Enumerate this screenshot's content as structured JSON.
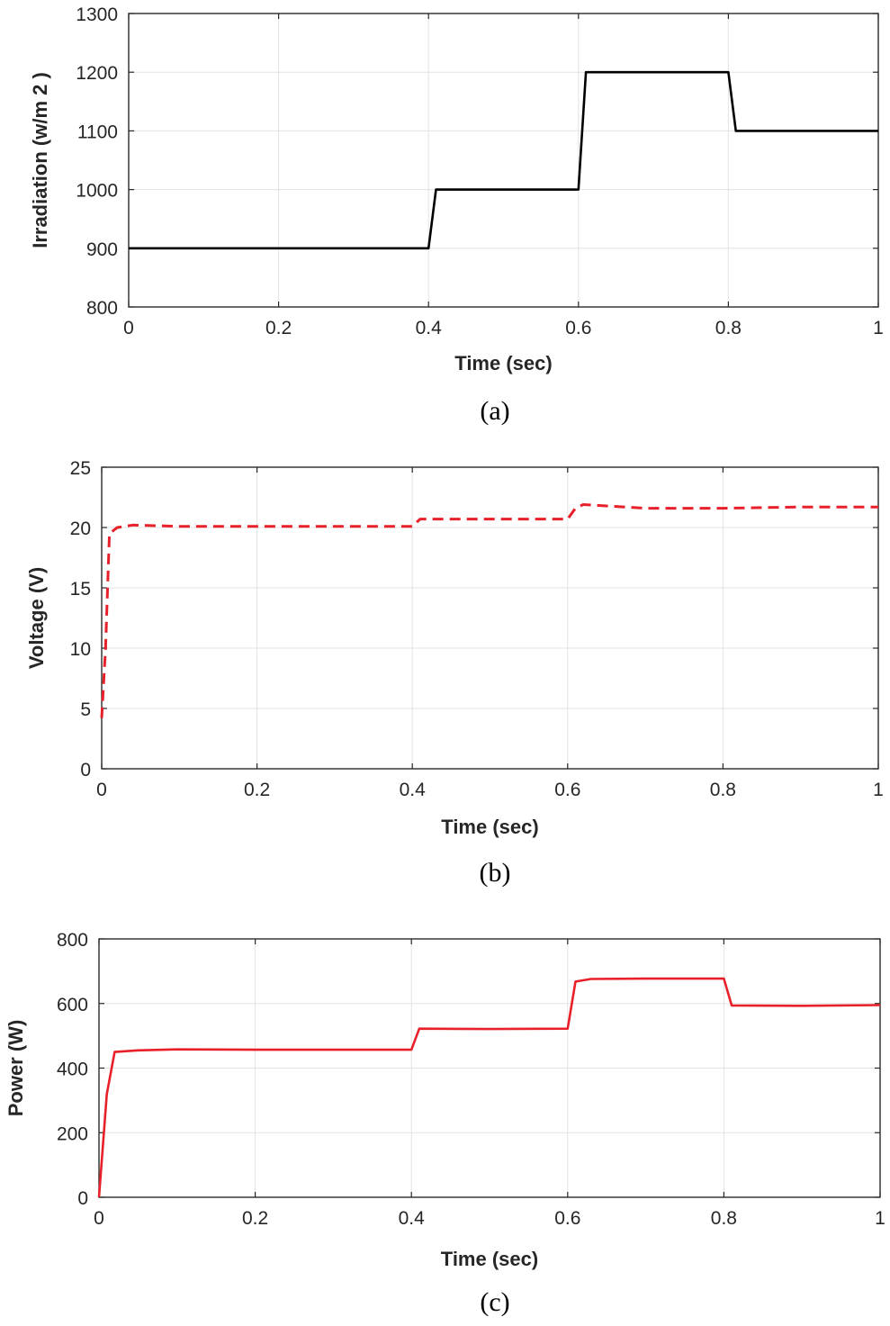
{
  "chart_data": [
    {
      "type": "line",
      "panel_caption": "(a)",
      "title": "",
      "xlabel": "Time (sec)",
      "ylabel": "Irradiation (w/m 2 )",
      "xlim": [
        0,
        1
      ],
      "ylim": [
        800,
        1300
      ],
      "xticks": [
        0,
        0.2,
        0.4,
        0.6,
        0.8,
        1
      ],
      "xtick_labels": [
        "0",
        "0.2",
        "0.4",
        "0.6",
        "0.8",
        "1"
      ],
      "yticks": [
        800,
        900,
        1000,
        1100,
        1200,
        1300
      ],
      "ytick_labels": [
        "800",
        "900",
        "1000",
        "1100",
        "1200",
        "1300"
      ],
      "grid": true,
      "series": [
        {
          "name": "Irradiation",
          "color": "#000000",
          "style": "solid",
          "x": [
            0,
            0.4,
            0.41,
            0.6,
            0.61,
            0.8,
            0.81,
            1.0
          ],
          "y": [
            900,
            900,
            1000,
            1000,
            1200,
            1200,
            1100,
            1100
          ]
        }
      ]
    },
    {
      "type": "line",
      "panel_caption": "(b)",
      "title": "",
      "xlabel": "Time (sec)",
      "ylabel": "Voltage (V)",
      "xlim": [
        0,
        1
      ],
      "ylim": [
        0,
        25
      ],
      "xticks": [
        0,
        0.2,
        0.4,
        0.6,
        0.8,
        1
      ],
      "xtick_labels": [
        "0",
        "0.2",
        "0.4",
        "0.6",
        "0.8",
        "1"
      ],
      "yticks": [
        0,
        5,
        10,
        15,
        20,
        25
      ],
      "ytick_labels": [
        "0",
        "5",
        "10",
        "15",
        "20",
        "25"
      ],
      "grid": true,
      "series": [
        {
          "name": "Voltage",
          "color": "#e8202a",
          "style": "dashed",
          "x": [
            0,
            0.005,
            0.01,
            0.02,
            0.04,
            0.1,
            0.2,
            0.3,
            0.4,
            0.41,
            0.5,
            0.6,
            0.61,
            0.62,
            0.7,
            0.8,
            0.9,
            1.0
          ],
          "y": [
            4.2,
            10,
            19.5,
            20.0,
            20.2,
            20.1,
            20.1,
            20.1,
            20.1,
            20.7,
            20.7,
            20.7,
            21.6,
            21.9,
            21.6,
            21.6,
            21.7,
            21.7
          ]
        }
      ]
    },
    {
      "type": "line",
      "panel_caption": "(c)",
      "title": "",
      "xlabel": "Time (sec)",
      "ylabel": "Power (W)",
      "xlim": [
        0,
        1
      ],
      "ylim": [
        0,
        800
      ],
      "xticks": [
        0,
        0.2,
        0.4,
        0.6,
        0.8,
        1
      ],
      "xtick_labels": [
        "0",
        "0.2",
        "0.4",
        "0.6",
        "0.8",
        "1"
      ],
      "yticks": [
        0,
        200,
        400,
        600,
        800
      ],
      "ytick_labels": [
        "0",
        "200",
        "400",
        "600",
        "800"
      ],
      "grid": true,
      "series": [
        {
          "name": "Power",
          "color": "#e8202a",
          "style": "solid",
          "x": [
            0,
            0.01,
            0.02,
            0.05,
            0.1,
            0.2,
            0.3,
            0.4,
            0.41,
            0.5,
            0.6,
            0.61,
            0.63,
            0.7,
            0.8,
            0.81,
            0.9,
            1.0
          ],
          "y": [
            0,
            320,
            450,
            455,
            458,
            457,
            457,
            457,
            522,
            521,
            522,
            668,
            676,
            677,
            677,
            594,
            593,
            595
          ]
        }
      ]
    }
  ]
}
